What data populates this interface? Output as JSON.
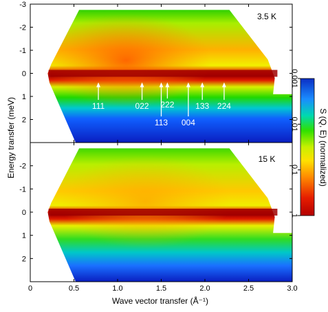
{
  "chart_data": {
    "type": "heatmap",
    "xlabel": "Wave vector transfer (Å⁻¹)",
    "ylabel": "Energy transfer (meV)",
    "xlim": [
      0,
      3.0
    ],
    "ylim": [
      -3,
      3
    ],
    "x_ticks": [
      0,
      0.5,
      1.0,
      1.5,
      2.0,
      2.5,
      3.0
    ],
    "x_tick_labels": [
      "0",
      "0.5",
      "1.0",
      "1.5",
      "2.0",
      "2.5",
      "3.0"
    ],
    "y_ticks": [
      -2,
      -1,
      0,
      1,
      2
    ],
    "y_tick_labels": [
      "-2",
      "-1",
      "0",
      "1",
      "2"
    ],
    "top_panel_y_tick_labels": [
      "-3",
      "-2",
      "-1",
      "0",
      "1",
      "2"
    ],
    "y_inverted": true,
    "colorbar": {
      "label": "S (Q, E) (normalized)",
      "scale": "log",
      "ticks": [
        0.001,
        0.01,
        0.1,
        1
      ],
      "tick_labels": [
        "0.001",
        "0.01",
        "0.1",
        "1"
      ],
      "colors": [
        "#0b2ec4",
        "#1a8cff",
        "#00d9b0",
        "#30e000",
        "#c8f000",
        "#ffe000",
        "#ff8a00",
        "#e61e00",
        "#b40000"
      ]
    },
    "panels": [
      {
        "temperature": "3.5 K",
        "elastic_line_energy": 0,
        "bragg_peaks": [
          {
            "label": "111",
            "q": 0.78
          },
          {
            "label": "022",
            "q": 1.28
          },
          {
            "label": "113",
            "q": 1.5
          },
          {
            "label": "222",
            "q": 1.57
          },
          {
            "label": "004",
            "q": 1.81
          },
          {
            "label": "133",
            "q": 1.97
          },
          {
            "label": "224",
            "q": 2.22
          }
        ]
      },
      {
        "temperature": "15 K",
        "elastic_line_energy": 0,
        "bragg_peaks": []
      }
    ]
  }
}
